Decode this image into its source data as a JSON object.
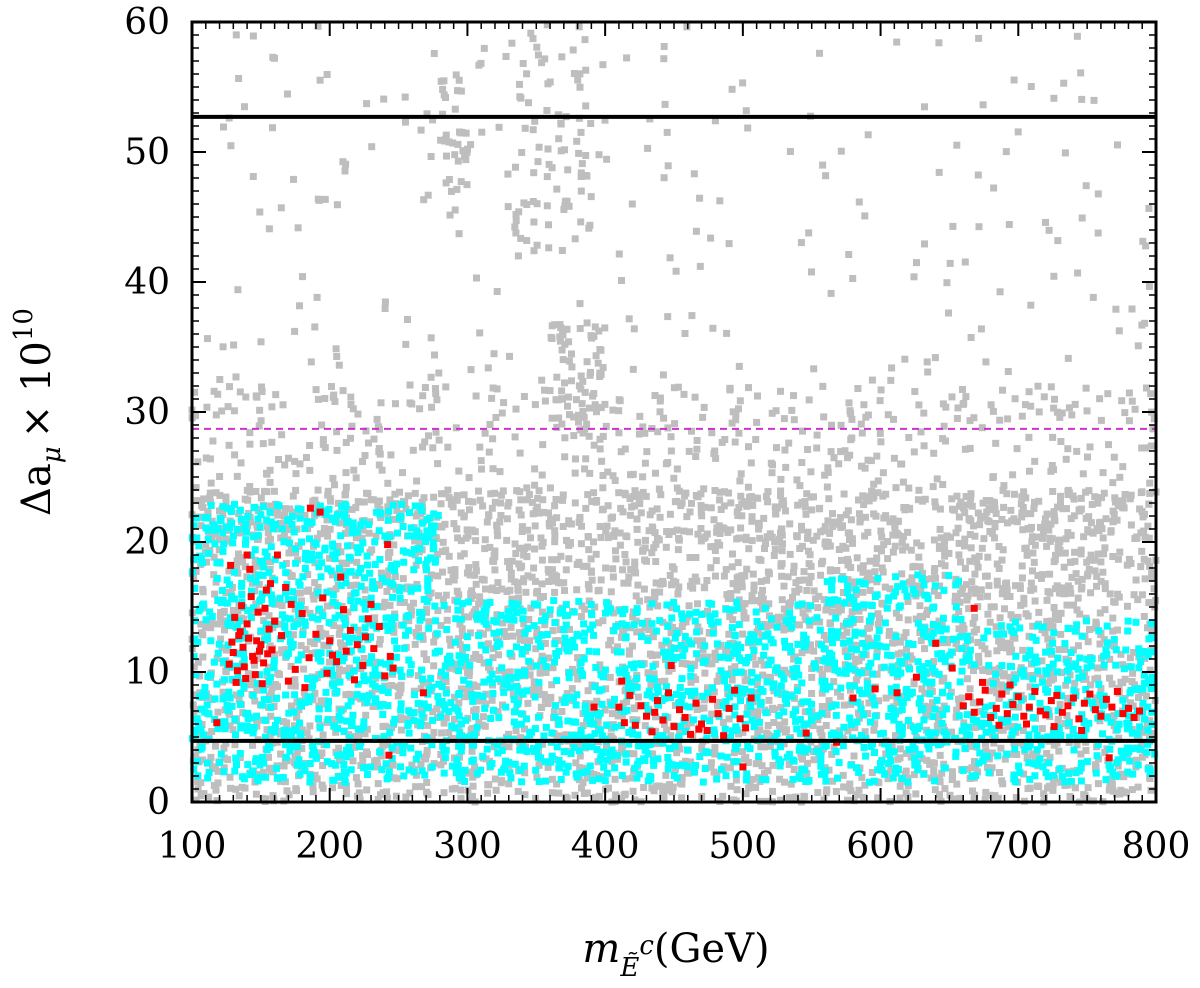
{
  "chart_data": {
    "type": "scatter",
    "title": "",
    "xlabel": {
      "main": "m",
      "sub": "Ẽ",
      "sup": "c",
      "unit": "(GeV)"
    },
    "ylabel": {
      "main": "Δa",
      "sub": "μ",
      "mult": "× 10",
      "exp": "10"
    },
    "xlim": [
      100,
      800
    ],
    "ylim": [
      0,
      60
    ],
    "xticks": [
      100,
      200,
      300,
      400,
      500,
      600,
      700,
      800
    ],
    "yticks": [
      0,
      10,
      20,
      30,
      40,
      50,
      60
    ],
    "grid": false,
    "colors": {
      "gray": "#bebebe",
      "cyan": "#00ffff",
      "red": "#ff0000",
      "magenta": "#cc33cc",
      "black": "#000000"
    },
    "reference_lines": [
      {
        "y": 52.7,
        "style": "solid",
        "color": "#000000"
      },
      {
        "y": 28.7,
        "style": "dashed",
        "color": "#cc33cc"
      },
      {
        "y": 4.7,
        "style": "solid",
        "color": "#000000"
      }
    ],
    "series": [
      {
        "color": "#bebebe",
        "regions": [
          {
            "x": [
              100,
              800
            ],
            "y": [
              0,
              24
            ],
            "density": 1.0
          },
          {
            "x": [
              100,
              800
            ],
            "y": [
              20,
              32
            ],
            "density": 0.35
          },
          {
            "x": [
              100,
              800
            ],
            "y": [
              30,
              60
            ],
            "density": 0.06
          },
          {
            "x": [
              280,
              300
            ],
            "y": [
              45,
              56
            ],
            "density": 0.8
          },
          {
            "x": [
              330,
              390
            ],
            "y": [
              42,
              60
            ],
            "density": 0.35
          },
          {
            "x": [
              360,
              400
            ],
            "y": [
              28,
              37
            ],
            "density": 0.9
          }
        ]
      },
      {
        "color": "#00ffff",
        "regions": [
          {
            "x": [
              100,
              280
            ],
            "y": [
              1.5,
              23
            ],
            "density": 1.0
          },
          {
            "x": [
              280,
              560
            ],
            "y": [
              1.5,
              15.5
            ],
            "density": 1.0
          },
          {
            "x": [
              560,
              660
            ],
            "y": [
              1.5,
              17.5
            ],
            "density": 1.0
          },
          {
            "x": [
              660,
              800
            ],
            "y": [
              1.5,
              14
            ],
            "density": 0.9
          }
        ]
      },
      {
        "color": "#ff0000",
        "points": [
          [
            128,
            18.2
          ],
          [
            130,
            11.5
          ],
          [
            132,
            9.2
          ],
          [
            134,
            12.8
          ],
          [
            136,
            15.1
          ],
          [
            138,
            10.4
          ],
          [
            140,
            13.7
          ],
          [
            142,
            17.9
          ],
          [
            144,
            11.2
          ],
          [
            146,
            9.8
          ],
          [
            148,
            14.6
          ],
          [
            150,
            12.1
          ],
          [
            152,
            10.7
          ],
          [
            154,
            16.3
          ],
          [
            156,
            13.3
          ],
          [
            133,
            10.1
          ],
          [
            137,
            11.9
          ],
          [
            141,
            12.6
          ],
          [
            145,
            10.9
          ],
          [
            149,
            11.6
          ],
          [
            131,
            14.2
          ],
          [
            135,
            13.1
          ],
          [
            139,
            9.5
          ],
          [
            143,
            15.8
          ],
          [
            147,
            12.4
          ],
          [
            151,
            9.1
          ],
          [
            153,
            14.9
          ],
          [
            155,
            11.4
          ],
          [
            129,
            12.3
          ],
          [
            127,
            10.6
          ],
          [
            158,
            11.7
          ],
          [
            160,
            13.9
          ],
          [
            165,
            12.8
          ],
          [
            170,
            9.3
          ],
          [
            175,
            10.2
          ],
          [
            180,
            14.5
          ],
          [
            185,
            11.1
          ],
          [
            190,
            12.9
          ],
          [
            195,
            15.7
          ],
          [
            198,
            9.9
          ],
          [
            200,
            12.4
          ],
          [
            205,
            10.8
          ],
          [
            208,
            17.3
          ],
          [
            212,
            11.6
          ],
          [
            215,
            13.2
          ],
          [
            218,
            9.4
          ],
          [
            220,
            12.1
          ],
          [
            224,
            10.5
          ],
          [
            228,
            14.1
          ],
          [
            232,
            11.8
          ],
          [
            236,
            13.5
          ],
          [
            240,
            9.7
          ],
          [
            244,
            11.2
          ],
          [
            246,
            10.3
          ],
          [
            230,
            15.2
          ],
          [
            226,
            12.7
          ],
          [
            210,
            14.8
          ],
          [
            202,
            11.3
          ],
          [
            186,
            22.6
          ],
          [
            242,
            19.8
          ],
          [
            118,
            6.1
          ],
          [
            268,
            8.4
          ],
          [
            243,
            3.6
          ],
          [
            182,
            8.8
          ],
          [
            172,
            15.2
          ],
          [
            162,
            19.0
          ],
          [
            193,
            22.3
          ],
          [
            168,
            16.5
          ],
          [
            140,
            19.0
          ],
          [
            157,
            16.8
          ],
          [
            410,
            7.3
          ],
          [
            414,
            6.1
          ],
          [
            418,
            8.2
          ],
          [
            422,
            5.9
          ],
          [
            426,
            7.4
          ],
          [
            430,
            6.6
          ],
          [
            434,
            5.4
          ],
          [
            438,
            7.8
          ],
          [
            442,
            6.3
          ],
          [
            446,
            8.4
          ],
          [
            450,
            5.8
          ],
          [
            454,
            7.1
          ],
          [
            458,
            6.5
          ],
          [
            462,
            5.2
          ],
          [
            466,
            7.6
          ],
          [
            470,
            6.0
          ],
          [
            474,
            5.5
          ],
          [
            478,
            7.9
          ],
          [
            482,
            6.8
          ],
          [
            486,
            5.1
          ],
          [
            490,
            7.2
          ],
          [
            494,
            8.6
          ],
          [
            498,
            6.4
          ],
          [
            502,
            5.7
          ],
          [
            506,
            8.0
          ],
          [
            412,
            9.3
          ],
          [
            436,
            6.9
          ],
          [
            448,
            10.5
          ],
          [
            468,
            5.6
          ],
          [
            392,
            7.3
          ],
          [
            546,
            5.3
          ],
          [
            568,
            4.6
          ],
          [
            500,
            2.7
          ],
          [
            580,
            8.0
          ],
          [
            596,
            8.7
          ],
          [
            612,
            8.4
          ],
          [
            626,
            9.6
          ],
          [
            640,
            12.2
          ],
          [
            652,
            10.3
          ],
          [
            668,
            14.9
          ],
          [
            660,
            7.4
          ],
          [
            664,
            8.1
          ],
          [
            668,
            6.9
          ],
          [
            672,
            7.7
          ],
          [
            676,
            8.6
          ],
          [
            680,
            6.5
          ],
          [
            684,
            7.2
          ],
          [
            688,
            8.3
          ],
          [
            692,
            6.8
          ],
          [
            696,
            7.5
          ],
          [
            700,
            8.1
          ],
          [
            704,
            6.6
          ],
          [
            708,
            7.3
          ],
          [
            712,
            8.5
          ],
          [
            716,
            7.0
          ],
          [
            720,
            6.7
          ],
          [
            724,
            7.8
          ],
          [
            728,
            8.2
          ],
          [
            732,
            6.9
          ],
          [
            736,
            7.4
          ],
          [
            740,
            8.0
          ],
          [
            744,
            6.4
          ],
          [
            748,
            7.6
          ],
          [
            752,
            8.3
          ],
          [
            756,
            7.1
          ],
          [
            760,
            6.6
          ],
          [
            764,
            7.9
          ],
          [
            768,
            7.3
          ],
          [
            772,
            8.5
          ],
          [
            776,
            6.8
          ],
          [
            780,
            7.2
          ],
          [
            784,
            6.5
          ],
          [
            788,
            7.0
          ],
          [
            706,
            6.0
          ],
          [
            726,
            5.8
          ],
          [
            746,
            5.5
          ],
          [
            766,
            3.4
          ],
          [
            686,
            5.9
          ],
          [
            674,
            9.2
          ],
          [
            694,
            9.0
          ]
        ]
      }
    ]
  }
}
